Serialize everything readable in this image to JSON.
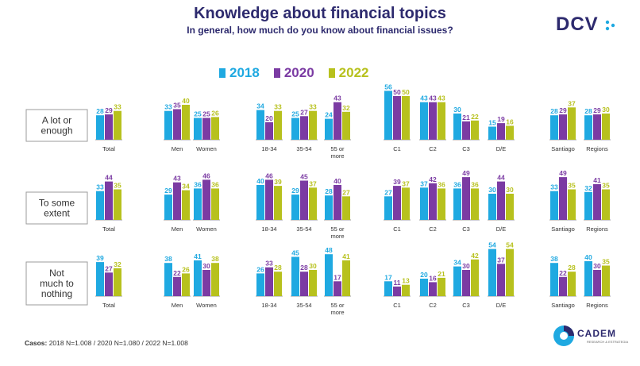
{
  "header": {
    "title": "Knowledge about financial topics",
    "subtitle": "In general, how much do you know about financial issues?"
  },
  "logo": {
    "dcv": "DCV",
    "cadem": "CADEM",
    "cadem_sub": "RESEARCH & ESTRATEGIA"
  },
  "colors": {
    "2018": "#1fa9e1",
    "2020": "#7b3ba3",
    "2022": "#b7c11d",
    "text_dark": "#2d2a6e"
  },
  "footer": {
    "casos_label": "Casos:",
    "casos_text": " 2018 N=1.008 / 2020 N=1.080 / 2022 N=1.008"
  },
  "chart_data": {
    "type": "bar",
    "series_names": [
      "2018",
      "2020",
      "2022"
    ],
    "categories": [
      "Total",
      "Men",
      "Women",
      "18-34",
      "35-54",
      "55 or more",
      "C1",
      "C2",
      "C3",
      "D/E",
      "Santiago",
      "Regions"
    ],
    "rows": [
      {
        "label": "A lot or enough",
        "values": {
          "2018": [
            28,
            33,
            25,
            34,
            25,
            24,
            56,
            43,
            30,
            15,
            28,
            28
          ],
          "2020": [
            29,
            35,
            25,
            20,
            27,
            43,
            50,
            43,
            21,
            19,
            29,
            29
          ],
          "2022": [
            33,
            40,
            26,
            33,
            33,
            32,
            50,
            43,
            22,
            16,
            37,
            30
          ]
        }
      },
      {
        "label": "To some extent",
        "values": {
          "2018": [
            33,
            29,
            36,
            40,
            29,
            28,
            27,
            37,
            36,
            30,
            33,
            32
          ],
          "2020": [
            44,
            43,
            46,
            46,
            45,
            40,
            39,
            42,
            49,
            44,
            49,
            41
          ],
          "2022": [
            35,
            34,
            36,
            39,
            37,
            27,
            37,
            36,
            36,
            30,
            35,
            35
          ]
        }
      },
      {
        "label": "Not much to nothing",
        "values": {
          "2018": [
            39,
            38,
            41,
            26,
            45,
            48,
            17,
            20,
            34,
            54,
            38,
            40
          ],
          "2020": [
            27,
            22,
            30,
            33,
            28,
            17,
            11,
            16,
            30,
            37,
            22,
            30
          ],
          "2022": [
            32,
            26,
            38,
            28,
            30,
            41,
            13,
            21,
            42,
            54,
            28,
            35
          ]
        }
      }
    ]
  }
}
